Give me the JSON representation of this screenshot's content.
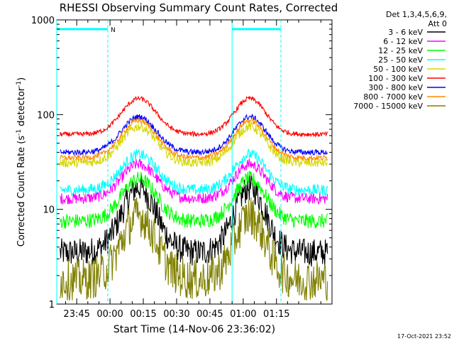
{
  "chart_data": {
    "type": "line",
    "title": "RHESSI Observing Summary Count Rates, Corrected",
    "xlabel": "Start Time (14-Nov-06 23:36:02)",
    "ylabel_main": "Corrected Count Rate (s",
    "ylabel_sup1": "-1",
    "ylabel_mid": " detector",
    "ylabel_sup2": "-1",
    "ylabel_end": ")",
    "yscale": "log",
    "ylim": [
      1,
      1000
    ],
    "xlim_minutes": [
      -24,
      100
    ],
    "x_ticks": [
      {
        "label": "23:45",
        "m": -15
      },
      {
        "label": "00:00",
        "m": 0
      },
      {
        "label": "00:15",
        "m": 15
      },
      {
        "label": "00:30",
        "m": 30
      },
      {
        "label": "00:45",
        "m": 45
      },
      {
        "label": "01:00",
        "m": 60
      },
      {
        "label": "01:15",
        "m": 75
      }
    ],
    "y_ticks": [
      {
        "label": "1",
        "v": 1
      },
      {
        "label": "10",
        "v": 10
      },
      {
        "label": "100",
        "v": 100
      },
      {
        "label": "1000",
        "v": 1000
      }
    ],
    "legend": {
      "header1": "Det 1,3,4,5,6,9,",
      "header2": "Att 0",
      "placement": "right"
    },
    "series": [
      {
        "name": "3 - 6 keV",
        "color": "#000000",
        "base": 3.5,
        "peak": 17,
        "noise": 0.15
      },
      {
        "name": "6 - 12 keV",
        "color": "#ff00ff",
        "base": 13,
        "peak": 30,
        "noise": 0.06
      },
      {
        "name": "12 - 25 keV",
        "color": "#00ff00",
        "base": 7.5,
        "peak": 21,
        "noise": 0.08
      },
      {
        "name": "25 - 50 keV",
        "color": "#00ffff",
        "base": 16,
        "peak": 38,
        "noise": 0.06
      },
      {
        "name": "50 - 100 keV",
        "color": "#d7d700",
        "base": 31,
        "peak": 75,
        "noise": 0.05
      },
      {
        "name": "100 - 300 keV",
        "color": "#ff0000",
        "base": 62,
        "peak": 148,
        "noise": 0.025
      },
      {
        "name": "300 - 800 keV",
        "color": "#0000ff",
        "base": 40,
        "peak": 95,
        "noise": 0.03
      },
      {
        "name": "800 - 7000 keV",
        "color": "#ff8c00",
        "base": 35,
        "peak": 87,
        "noise": 0.03
      },
      {
        "name": "7000 - 15000 keV",
        "color": "#808000",
        "base": 1.8,
        "peak": 8.5,
        "noise": 0.22
      }
    ],
    "flags": {
      "label": "N",
      "color": "#00ffff",
      "intervals_minutes": [
        [
          -24,
          -1
        ],
        [
          55,
          77
        ]
      ]
    }
  },
  "footer_timestamp": "17-Oct-2021 23:52"
}
